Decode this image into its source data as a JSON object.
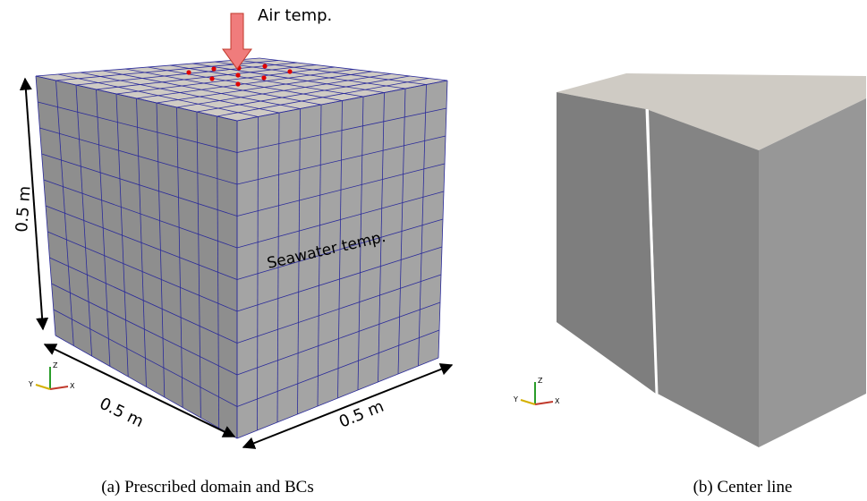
{
  "panel_a": {
    "annotations": {
      "air": "Air temp.",
      "seawater": "Seawater temp.",
      "height": "0.5 m",
      "width": "0.5 m",
      "depth": "0.5 m"
    },
    "axes": {
      "z": "Z",
      "y": "Y",
      "x": "X"
    },
    "caption": "(a) Prescribed domain and BCs"
  },
  "panel_b": {
    "axes": {
      "z": "Z",
      "y": "Y",
      "x": "X"
    },
    "caption": "(b) Center line"
  }
}
